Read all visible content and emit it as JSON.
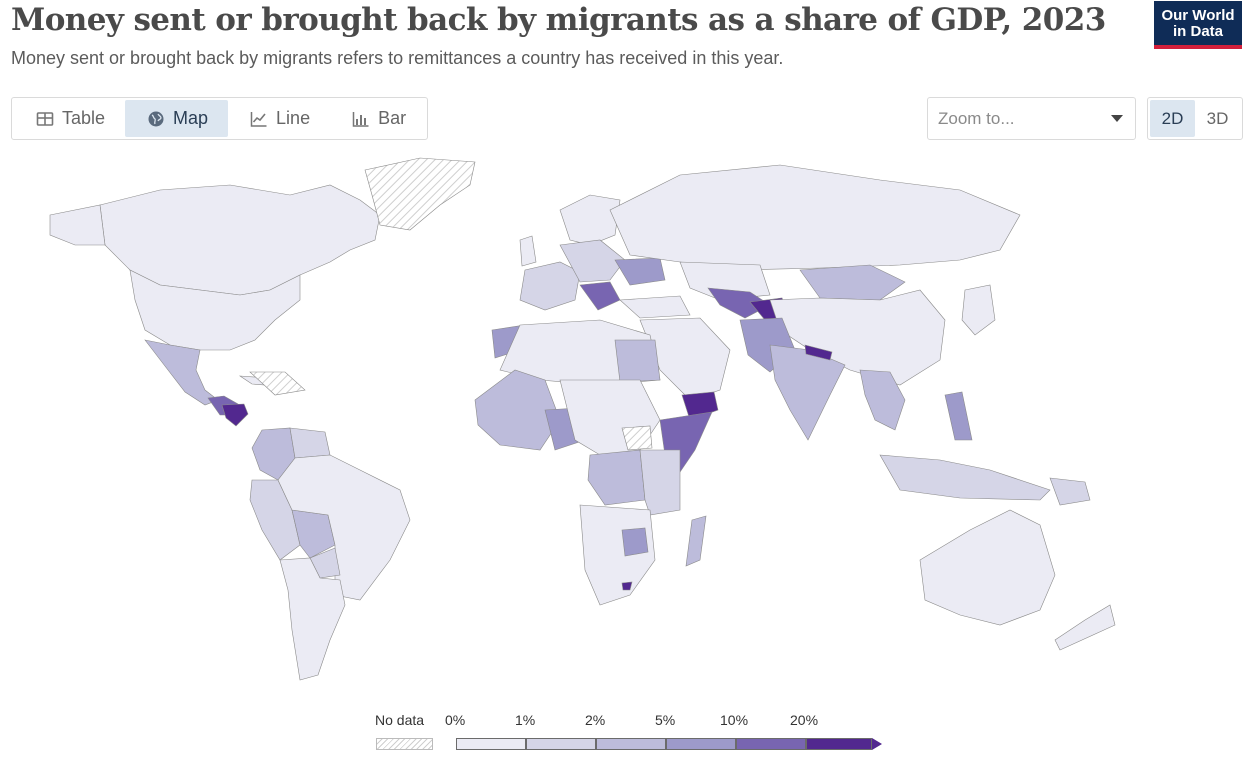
{
  "header": {
    "title": "Money sent or brought back by migrants as a share of GDP, 2023",
    "subtitle": "Money sent or brought back by migrants refers to remittances a country has received in this year."
  },
  "logo": {
    "line1": "Our World",
    "line2": "in Data"
  },
  "tabs": [
    {
      "label": "Table",
      "icon": "table-icon",
      "active": false
    },
    {
      "label": "Map",
      "icon": "globe-icon",
      "active": true
    },
    {
      "label": "Line",
      "icon": "line-chart-icon",
      "active": false
    },
    {
      "label": "Bar",
      "icon": "bar-chart-icon",
      "active": false
    }
  ],
  "zoom": {
    "placeholder": "Zoom to..."
  },
  "view_modes": [
    {
      "label": "2D",
      "active": true
    },
    {
      "label": "3D",
      "active": false
    }
  ],
  "colors": {
    "nodata": "#ffffff",
    "bin0": "#ebebf4",
    "bin1": "#d5d5e7",
    "bin2": "#bdbcdb",
    "bin3": "#9d9aca",
    "bin4": "#7865b1",
    "bin5": "#52288f"
  },
  "legend": {
    "nodata_label": "No data",
    "ticks": [
      "0%",
      "1%",
      "2%",
      "5%",
      "10%",
      "20%"
    ]
  }
}
